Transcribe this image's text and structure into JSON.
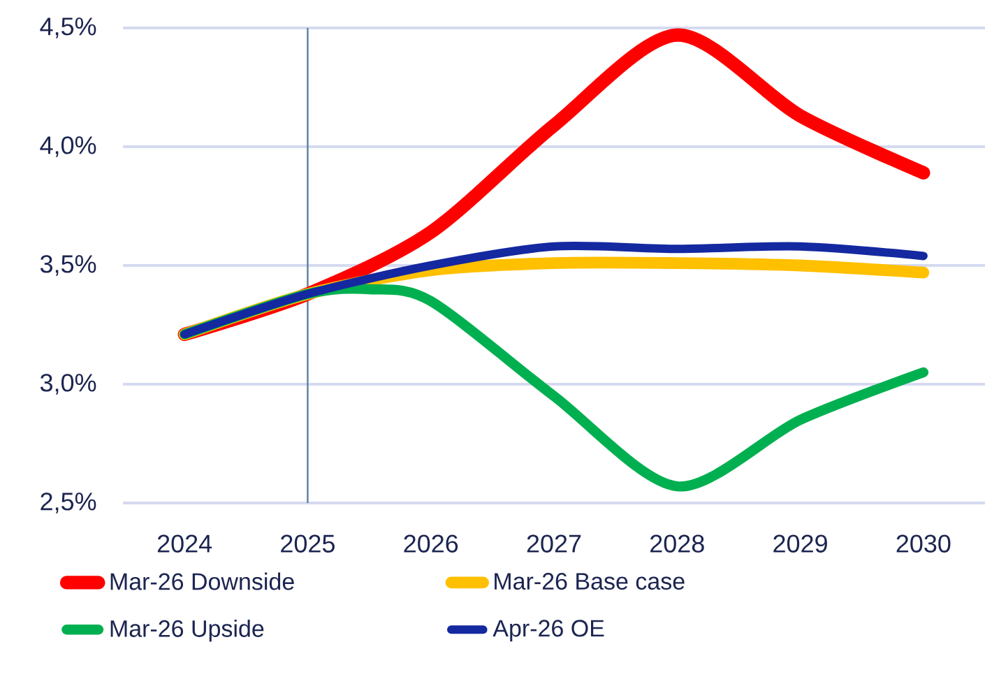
{
  "chart_data": {
    "type": "line",
    "xlim": [
      2023.5,
      2030.5
    ],
    "xticks": [
      2024,
      2025,
      2026,
      2027,
      2028,
      2029,
      2030
    ],
    "ylim": [
      2.5,
      4.5
    ],
    "yticks": [
      {
        "value": 2.5,
        "label": "2,5%"
      },
      {
        "value": 3.0,
        "label": "3,0%"
      },
      {
        "value": 3.5,
        "label": "3,5%"
      },
      {
        "value": 4.0,
        "label": "4,0%"
      },
      {
        "value": 4.5,
        "label": "4,5%"
      }
    ],
    "grid": "y",
    "legend": "bottom",
    "line_style": "solid",
    "marker": "none",
    "ref_lines": [
      {
        "axis": "x",
        "value": 2025,
        "color": "#5a7fa0"
      }
    ],
    "series": [
      {
        "name": "Mar-26 Downside",
        "color": "#ff0000",
        "x": [
          2024,
          2025,
          2026,
          2027,
          2028,
          2029,
          2030
        ],
        "values": [
          3.21,
          3.38,
          3.64,
          4.09,
          4.47,
          4.13,
          3.89
        ]
      },
      {
        "name": "Mar-26 Base case",
        "color": "#ffc000",
        "x": [
          2024,
          2025,
          2026,
          2027,
          2028,
          2029,
          2030
        ],
        "values": [
          3.21,
          3.38,
          3.48,
          3.51,
          3.51,
          3.5,
          3.47
        ]
      },
      {
        "name": "Mar-26 Upside",
        "color": "#00b050",
        "x": [
          2024,
          2025,
          2025.5,
          2026,
          2027,
          2028,
          2029,
          2030
        ],
        "values": [
          3.21,
          3.38,
          3.4,
          3.35,
          2.95,
          2.57,
          2.85,
          3.05
        ]
      },
      {
        "name": "Apr-26 OE",
        "color": "#1428a0",
        "x": [
          2024,
          2025,
          2026,
          2027,
          2028,
          2029,
          2030
        ],
        "values": [
          3.21,
          3.38,
          3.5,
          3.58,
          3.57,
          3.58,
          3.54
        ]
      }
    ]
  }
}
